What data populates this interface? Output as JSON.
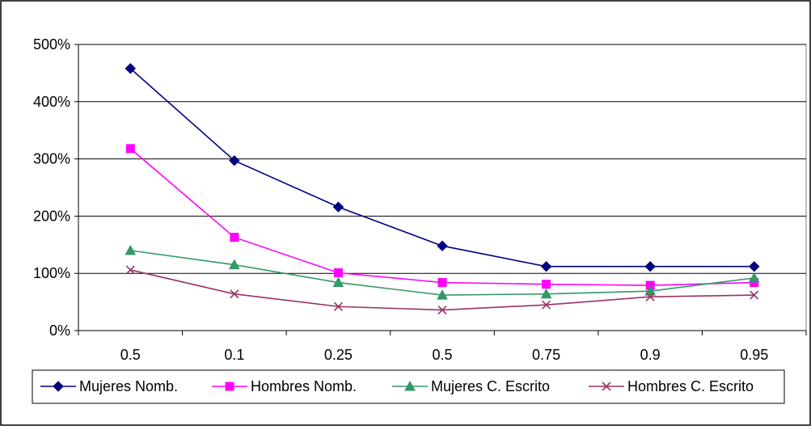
{
  "chart_data": {
    "type": "line",
    "categories": [
      "0.5",
      "0.1",
      "0.25",
      "0.5",
      "0.75",
      "0.9",
      "0.95"
    ],
    "series": [
      {
        "name": "Mujeres Nomb.",
        "values": [
          458,
          297,
          216,
          148,
          112,
          112,
          112
        ],
        "color": "#000080",
        "marker": "diamond"
      },
      {
        "name": "Hombres Nomb.",
        "values": [
          318,
          163,
          101,
          84,
          81,
          79,
          84
        ],
        "color": "#ff00ff",
        "marker": "square"
      },
      {
        "name": "Mujeres C. Escrito",
        "values": [
          140,
          115,
          84,
          62,
          64,
          69,
          92
        ],
        "color": "#339966",
        "marker": "triangle"
      },
      {
        "name": "Hombres C. Escrito",
        "values": [
          106,
          64,
          42,
          36,
          45,
          59,
          62
        ],
        "color": "#993366",
        "marker": "x"
      }
    ],
    "yticks": [
      "0%",
      "100%",
      "200%",
      "300%",
      "400%",
      "500%"
    ],
    "ylim": [
      0,
      500
    ],
    "ystep": 100,
    "grid": "horizontal",
    "legend_position": "bottom"
  }
}
